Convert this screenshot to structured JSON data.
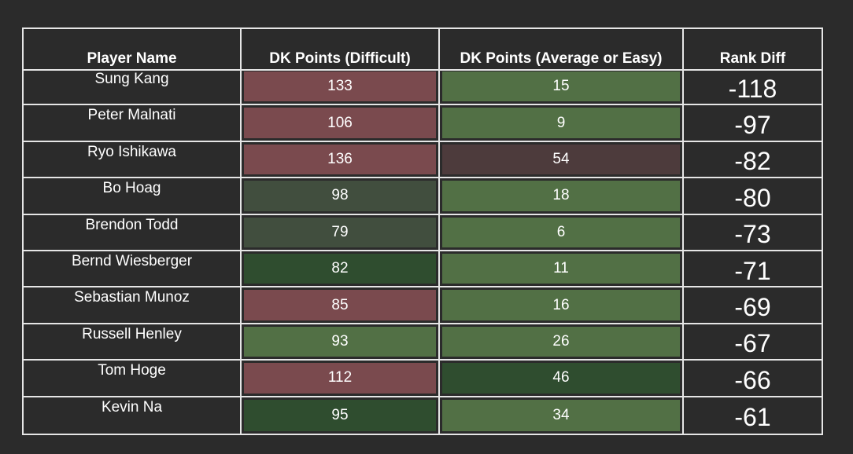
{
  "columns": [
    "Player Name",
    "DK Points (Difficult)",
    "DK Points (Average or Easy)",
    "Rank Diff"
  ],
  "colors": {
    "red": "#7a4a4e",
    "dark_red": "#4d3b3c",
    "dark_olive": "#414e3e",
    "dark_green": "#2f4d2f",
    "green": "#527045"
  },
  "chart_data": {
    "type": "table",
    "columns": [
      "Player Name",
      "DK Points (Difficult)",
      "DK Points (Average or Easy)",
      "Rank Diff"
    ],
    "rows": [
      {
        "name": "Sung Kang",
        "difficult": "133",
        "easy": "15",
        "rank_diff": "-118",
        "difficult_color": "red",
        "easy_color": "green"
      },
      {
        "name": "Peter Malnati",
        "difficult": "106",
        "easy": "9",
        "rank_diff": "-97",
        "difficult_color": "red",
        "easy_color": "green"
      },
      {
        "name": "Ryo Ishikawa",
        "difficult": "136",
        "easy": "54",
        "rank_diff": "-82",
        "difficult_color": "red",
        "easy_color": "dark_red"
      },
      {
        "name": "Bo Hoag",
        "difficult": "98",
        "easy": "18",
        "rank_diff": "-80",
        "difficult_color": "dark_olive",
        "easy_color": "green"
      },
      {
        "name": "Brendon Todd",
        "difficult": "79",
        "easy": "6",
        "rank_diff": "-73",
        "difficult_color": "dark_olive",
        "easy_color": "green"
      },
      {
        "name": "Bernd Wiesberger",
        "difficult": "82",
        "easy": "11",
        "rank_diff": "-71",
        "difficult_color": "dark_green",
        "easy_color": "green"
      },
      {
        "name": "Sebastian Munoz",
        "difficult": "85",
        "easy": "16",
        "rank_diff": "-69",
        "difficult_color": "red",
        "easy_color": "green"
      },
      {
        "name": "Russell Henley",
        "difficult": "93",
        "easy": "26",
        "rank_diff": "-67",
        "difficult_color": "green",
        "easy_color": "green"
      },
      {
        "name": "Tom Hoge",
        "difficult": "112",
        "easy": "46",
        "rank_diff": "-66",
        "difficult_color": "red",
        "easy_color": "dark_green"
      },
      {
        "name": "Kevin Na",
        "difficult": "95",
        "easy": "34",
        "rank_diff": "-61",
        "difficult_color": "dark_green",
        "easy_color": "green"
      }
    ]
  }
}
